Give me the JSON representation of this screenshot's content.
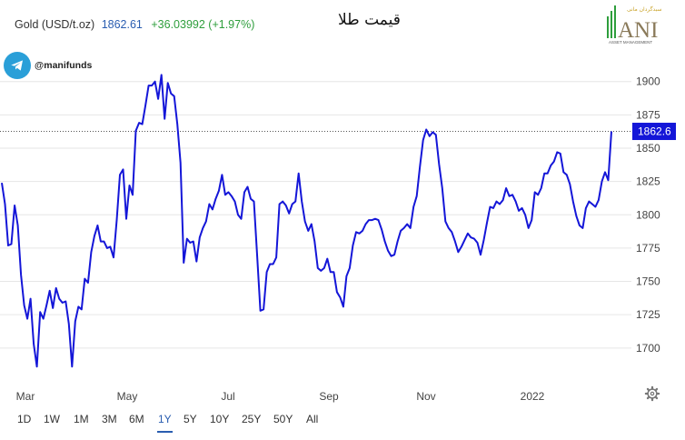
{
  "header": {
    "instrument": "Gold (USD/t.oz)",
    "price": "1862.61",
    "change": "+36.03992 (+1.97%)"
  },
  "title_fa": "قیمت طلا",
  "social": {
    "handle": "@manifunds",
    "icon": "telegram-icon"
  },
  "logo": {
    "text": "ANI",
    "subtitle": "ASSET MANAGEMENT",
    "tagline": "سبدگردان مانی"
  },
  "last_price_label": "1862.6",
  "ranges": [
    "1D",
    "1W",
    "1M",
    "3M",
    "6M",
    "1Y",
    "5Y",
    "10Y",
    "25Y",
    "50Y",
    "All"
  ],
  "active_range": "1Y",
  "colors": {
    "line": "#1416d8",
    "accent": "#2a5db0",
    "positive": "#2e9e3c",
    "telegram": "#2a9fd8"
  },
  "chart_data": {
    "type": "line",
    "series": [
      {
        "values": [
          1824,
          1808,
          1777,
          1778,
          1807,
          1792,
          1755,
          1732,
          1722,
          1737,
          1703,
          1686,
          1727,
          1722,
          1732,
          1743,
          1730,
          1745,
          1737,
          1734,
          1735,
          1718,
          1686,
          1720,
          1731,
          1729,
          1752,
          1749,
          1772,
          1784,
          1792,
          1780,
          1780,
          1775,
          1776,
          1768,
          1796,
          1830,
          1834,
          1797,
          1822,
          1815,
          1863,
          1869,
          1868,
          1882,
          1897,
          1897,
          1900,
          1887,
          1905,
          1872,
          1899,
          1891,
          1889,
          1868,
          1839,
          1764,
          1782,
          1779,
          1780,
          1765,
          1783,
          1790,
          1795,
          1808,
          1804,
          1812,
          1818,
          1830,
          1815,
          1817,
          1814,
          1810,
          1800,
          1797,
          1817,
          1821,
          1812,
          1810,
          1770,
          1728,
          1729,
          1757,
          1763,
          1763,
          1768,
          1808,
          1810,
          1807,
          1801,
          1808,
          1810,
          1831,
          1810,
          1795,
          1788,
          1793,
          1780,
          1760,
          1758,
          1760,
          1767,
          1757,
          1757,
          1742,
          1738,
          1731,
          1754,
          1760,
          1777,
          1787,
          1786,
          1788,
          1793,
          1796,
          1796,
          1797,
          1796,
          1789,
          1780,
          1773,
          1769,
          1770,
          1780,
          1788,
          1790,
          1793,
          1790,
          1806,
          1814,
          1836,
          1856,
          1864,
          1859,
          1862,
          1860,
          1838,
          1820,
          1795,
          1790,
          1787,
          1780,
          1772,
          1776,
          1781,
          1786,
          1783,
          1782,
          1779,
          1770,
          1781,
          1794,
          1806,
          1805,
          1810,
          1808,
          1811,
          1820,
          1814,
          1815,
          1810,
          1803,
          1805,
          1800,
          1790,
          1796,
          1817,
          1815,
          1820,
          1831,
          1831,
          1837,
          1840,
          1847,
          1846,
          1832,
          1830,
          1823,
          1810,
          1799,
          1792,
          1790,
          1805,
          1810,
          1808,
          1806,
          1811,
          1825,
          1832,
          1826,
          1862.6
        ]
      }
    ],
    "x_tick_labels": [
      "Mar",
      "May",
      "Jul",
      "Sep",
      "Nov",
      "2022"
    ],
    "y_ticks": [
      1700,
      1725,
      1750,
      1775,
      1800,
      1825,
      1850,
      1875,
      1900
    ],
    "ylim": [
      1676,
      1923
    ],
    "last_value": 1862.6,
    "grid": "horizontal"
  }
}
